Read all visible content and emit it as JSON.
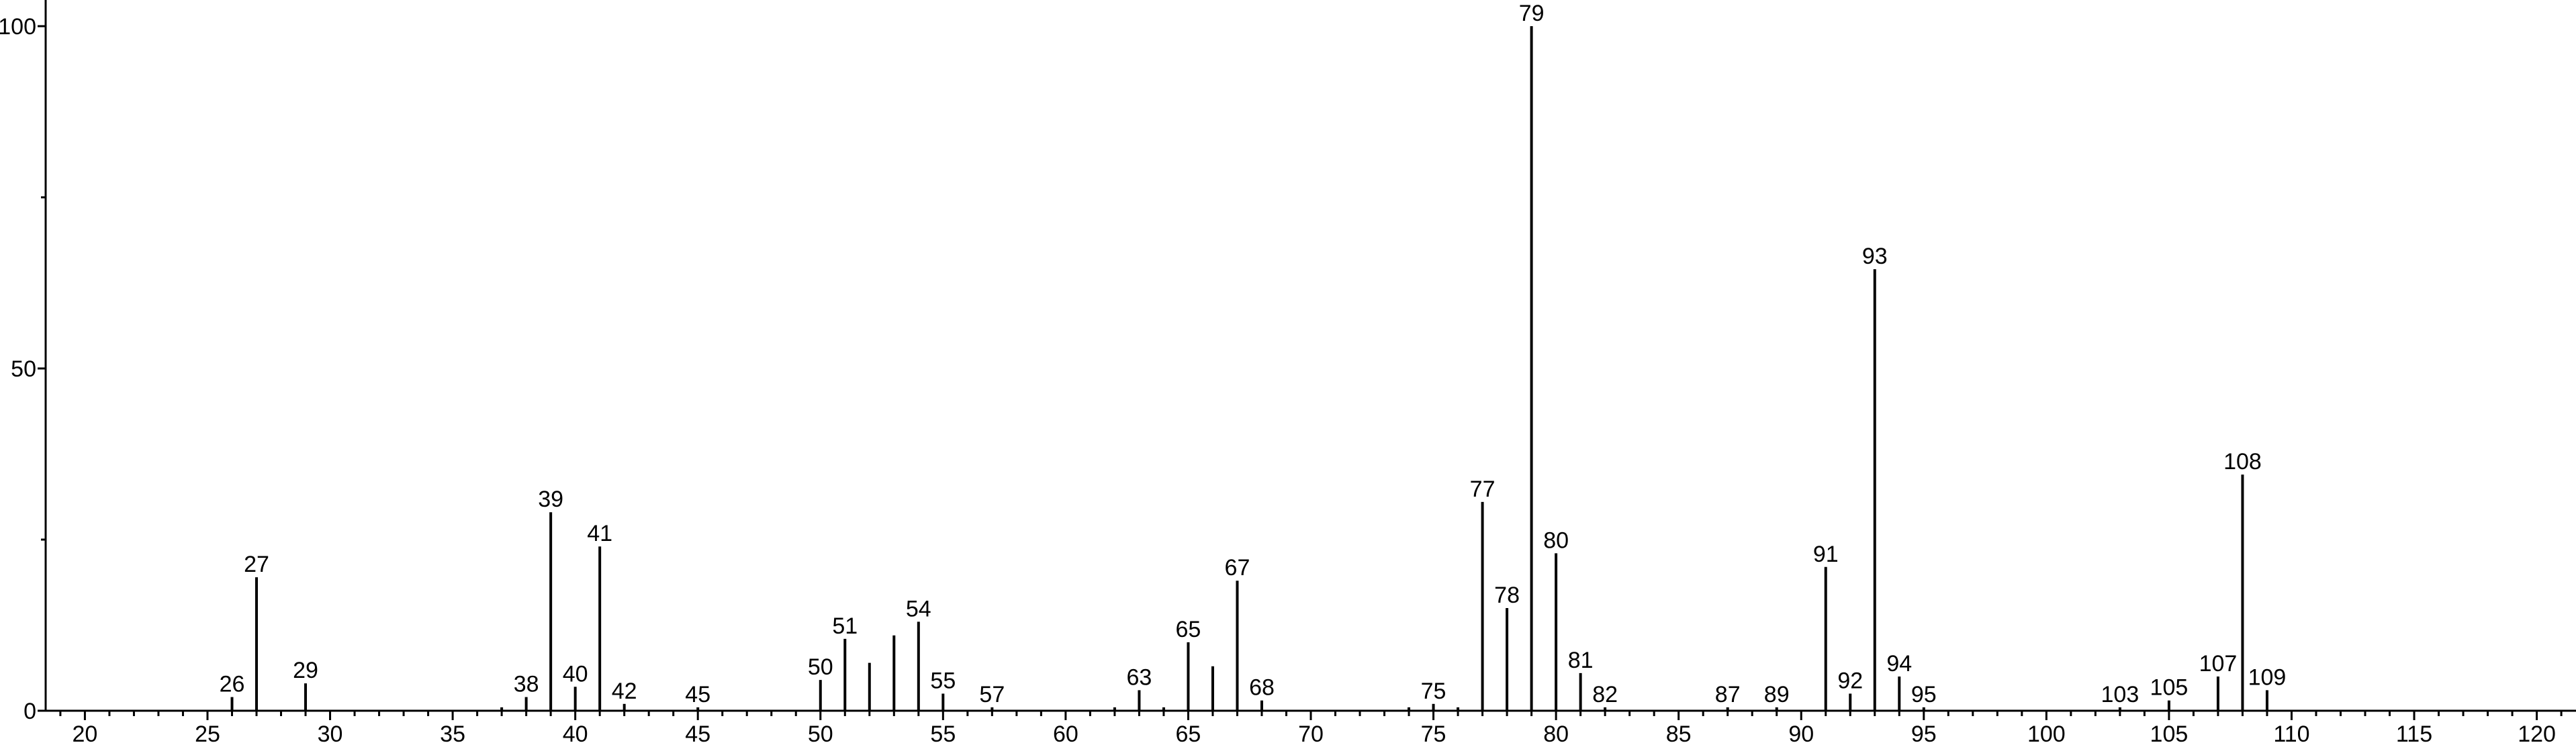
{
  "chart_data": {
    "type": "stem",
    "color": "#000000",
    "xlim": [
      18.4,
      121.6
    ],
    "ylim": [
      0,
      100
    ],
    "xticks": [
      20,
      25,
      30,
      35,
      40,
      45,
      50,
      55,
      60,
      65,
      70,
      75,
      80,
      85,
      90,
      95,
      100,
      105,
      110,
      115,
      120
    ],
    "xminorticks": [
      19,
      21,
      22,
      23,
      24,
      26,
      27,
      28,
      29,
      31,
      32,
      33,
      34,
      36,
      37,
      38,
      39,
      41,
      42,
      43,
      44,
      46,
      47,
      48,
      49,
      51,
      52,
      53,
      54,
      56,
      57,
      58,
      59,
      61,
      62,
      63,
      64,
      66,
      67,
      68,
      69,
      71,
      72,
      73,
      74,
      76,
      77,
      78,
      79,
      81,
      82,
      83,
      84,
      86,
      87,
      88,
      89,
      91,
      92,
      93,
      94,
      96,
      97,
      98,
      99,
      101,
      102,
      103,
      104,
      106,
      107,
      108,
      109,
      111,
      112,
      113,
      114,
      116,
      117,
      118,
      119,
      121
    ],
    "yticks": [
      0,
      50,
      100
    ],
    "yminorticks": [
      25,
      75
    ],
    "series": [
      {
        "show_labels": true,
        "x": [
          26,
          27,
          29,
          38,
          39,
          40,
          41,
          42,
          45,
          50,
          51,
          54,
          55,
          57,
          63,
          65,
          67,
          68,
          75,
          77,
          78,
          79,
          80,
          81,
          82,
          87,
          89,
          91,
          92,
          93,
          94,
          95,
          103,
          105,
          107,
          108,
          109
        ],
        "values": [
          2,
          19.5,
          4,
          2,
          29,
          3.5,
          24,
          1,
          0.5,
          4.5,
          10.5,
          13,
          2.5,
          0.5,
          3,
          10,
          19,
          1.5,
          1,
          30.5,
          15,
          100,
          23,
          5.5,
          0.5,
          0.5,
          0.5,
          21,
          2.5,
          64.5,
          5,
          0.5,
          0.5,
          1.5,
          5,
          34.5,
          3
        ]
      },
      {
        "show_labels": false,
        "x": [
          37,
          52,
          53,
          62,
          64,
          66,
          74,
          76
        ],
        "values": [
          0.5,
          7,
          11,
          0.5,
          0.5,
          6.5,
          0.5,
          0.5
        ]
      }
    ]
  }
}
